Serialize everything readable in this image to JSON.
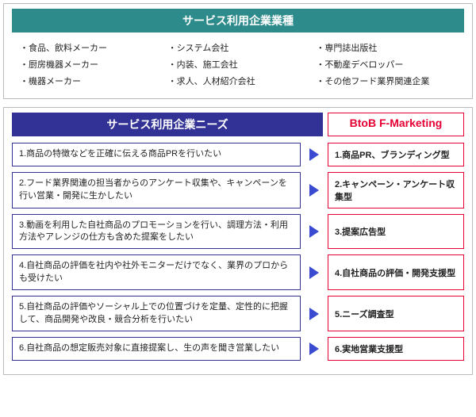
{
  "top_panel": {
    "title": "サービス利用企業業種",
    "title_bg": "#2e8b8b",
    "title_color": "#ffffff",
    "columns": [
      [
        "・食品、飲料メーカー",
        "・厨房機器メーカー",
        "・機器メーカー"
      ],
      [
        "・システム会社",
        "・内装、施工会社",
        "・求人、人材紹介会社"
      ],
      [
        "・専門誌出版社",
        "・不動産デベロッパー",
        "・その他フード業界関連企業"
      ]
    ]
  },
  "bottom_panel": {
    "needs_header": "サービス利用企業ニーズ",
    "needs_header_bg": "#323296",
    "marketing_header": "BtoB F-Marketing",
    "marketing_header_color": "#e60033",
    "need_border": "#323296",
    "marketing_border": "#e60033",
    "arrow_color": "#3a4bd1",
    "rows": [
      {
        "need": "1.商品の特徴などを正確に伝える商品PRを行いたい",
        "marketing": "1.商品PR、ブランディング型"
      },
      {
        "need": "2.フード業界関連の担当者からのアンケート収集や、キャンペーンを行い営業・開発に生かしたい",
        "marketing": "2.キャンペーン・アンケート収集型"
      },
      {
        "need": "3.動画を利用した自社商品のプロモーションを行い、調理方法・利用方法やアレンジの仕方も含めた提案をしたい",
        "marketing": "3.提案広告型"
      },
      {
        "need": "4.自社商品の評価を社内や社外モニターだけでなく、業界のプロからも受けたい",
        "marketing": "4.自社商品の評価・開発支援型"
      },
      {
        "need": "5.自社商品の評価やソーシャル上での位置づけを定量、定性的に把握して、商品開発や改良・競合分析を行いたい",
        "marketing": "5.ニーズ調査型"
      },
      {
        "need": "6.自社商品の想定販売対象に直接提案し、生の声を聞き営業したい",
        "marketing": "6.実地営業支援型"
      }
    ]
  }
}
